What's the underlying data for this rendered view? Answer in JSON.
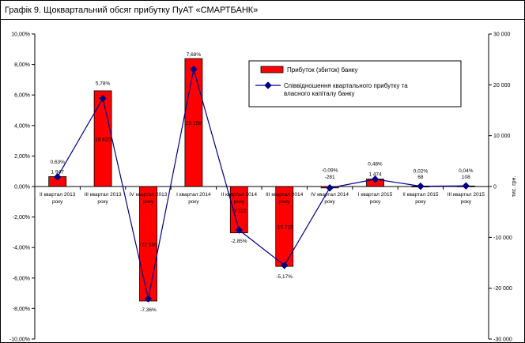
{
  "chart_data": {
    "type": "bar",
    "title": "Графік 9. Щоквартальний обсяг прибутку ПуАТ «СМАРТБАНК»",
    "categories": [
      [
        "ІІ квартал 2013",
        "року"
      ],
      [
        "ІІІ квартал 2013",
        "року"
      ],
      [
        "IV квартал 2013",
        "року"
      ],
      [
        "І квартал 2014",
        "року"
      ],
      [
        "ІІ квартал 2014",
        "року"
      ],
      [
        "ІІІ квартал 2014",
        "року"
      ],
      [
        "IV квартал 2014",
        "року"
      ],
      [
        "І квартал 2015",
        "року"
      ],
      [
        "ІІ квартал 2015",
        "року"
      ],
      [
        "ІІІ квартал 2015",
        "року"
      ]
    ],
    "series": [
      {
        "name": "Прибуток (збиток) банку",
        "type": "bar",
        "axis": "right",
        "color": "#ff0000",
        "values": [
          1947,
          18820,
          -22530,
          25158,
          -9112,
          -15715,
          -281,
          1474,
          68,
          108
        ],
        "labels": [
          "1 947",
          "18 820",
          "-22 530",
          "25 158",
          "-9 112",
          "-15 715",
          "-281",
          "1 474",
          "68",
          "108"
        ]
      },
      {
        "name": "Співвідношення квартального прибутку та власного капіталу банку",
        "legend_lines": [
          "Співвідношення квартального прибутку та",
          "власного капіталу банку"
        ],
        "type": "line",
        "axis": "left",
        "color": "#000080",
        "values": [
          0.63,
          5.78,
          -7.36,
          7.68,
          -2.85,
          -5.17,
          -0.09,
          0.48,
          0.02,
          0.04
        ],
        "labels": [
          "0,63%",
          "5,78%",
          "-7,36%",
          "7,68%",
          "-2,85%",
          "-5,17%",
          "-0,09%",
          "0,48%",
          "0,02%",
          "0,04%"
        ]
      }
    ],
    "y_left": {
      "range": [
        -10,
        10
      ],
      "ticks": [
        "10,00%",
        "8,00%",
        "6,00%",
        "4,00%",
        "2,00%",
        "0,00%",
        "-2,00%",
        "-4,00%",
        "-6,00%",
        "-8,00%",
        "-10,00%"
      ]
    },
    "y_right": {
      "range": [
        -30000,
        30000
      ],
      "ticks": [
        "30 000",
        "20 000",
        "10 000",
        "0",
        "-10 000",
        "-20 000",
        "-30 000"
      ],
      "label": "тис. грн."
    },
    "grid": false,
    "legend": "top-right"
  }
}
